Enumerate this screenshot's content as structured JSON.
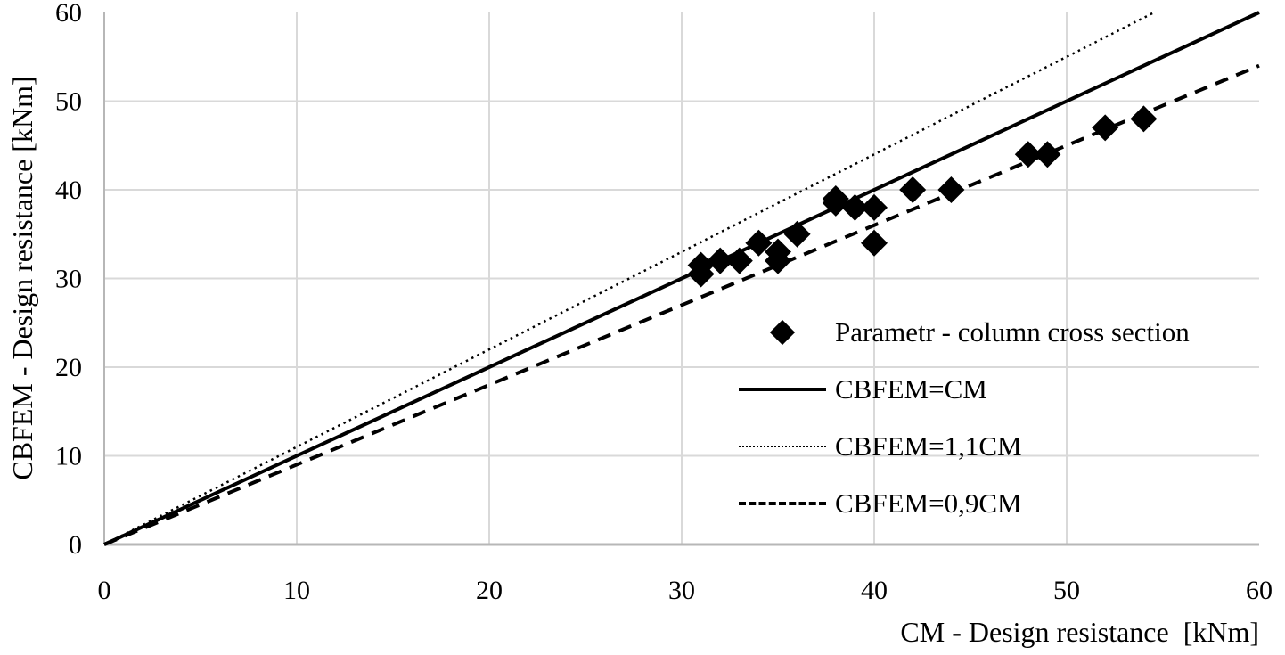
{
  "chart_data": {
    "type": "scatter",
    "title": "",
    "xlabel": "CM - Design resistance  [kNm]",
    "ylabel": "CBFEM - Design resistance [kNm]",
    "xlim": [
      0,
      60
    ],
    "ylim": [
      0,
      60
    ],
    "xticks": [
      0,
      10,
      20,
      30,
      40,
      50,
      60
    ],
    "yticks": [
      0,
      10,
      20,
      30,
      40,
      50,
      60
    ],
    "grid": true,
    "legend_position": "inside-right-middle",
    "colors": {
      "series": "#000000",
      "grid": "#d9d9d9",
      "axis": "#b7b7b7",
      "text": "#000000",
      "background": "#ffffff"
    },
    "series": [
      {
        "name": "Parametr - column cross section",
        "type": "scatter",
        "marker": "diamond",
        "color": "#000000",
        "points": [
          [
            31,
            31.5
          ],
          [
            31,
            30.5
          ],
          [
            32,
            32
          ],
          [
            33,
            32
          ],
          [
            34,
            34
          ],
          [
            35,
            33
          ],
          [
            35,
            32
          ],
          [
            36,
            35
          ],
          [
            38,
            39
          ],
          [
            38,
            38.5
          ],
          [
            39,
            38
          ],
          [
            40,
            38
          ],
          [
            40,
            34
          ],
          [
            42,
            40
          ],
          [
            44,
            40
          ],
          [
            48,
            44
          ],
          [
            49,
            44
          ],
          [
            52,
            47
          ],
          [
            54,
            48
          ]
        ]
      },
      {
        "name": "CBFEM=CM",
        "type": "line",
        "style": "solid",
        "slope": 1.0,
        "color": "#000000"
      },
      {
        "name": "CBFEM=1,1CM",
        "type": "line",
        "style": "dotted",
        "slope": 1.1,
        "color": "#000000"
      },
      {
        "name": "CBFEM=0,9CM",
        "type": "line",
        "style": "dashed",
        "slope": 0.9,
        "color": "#000000"
      }
    ]
  }
}
